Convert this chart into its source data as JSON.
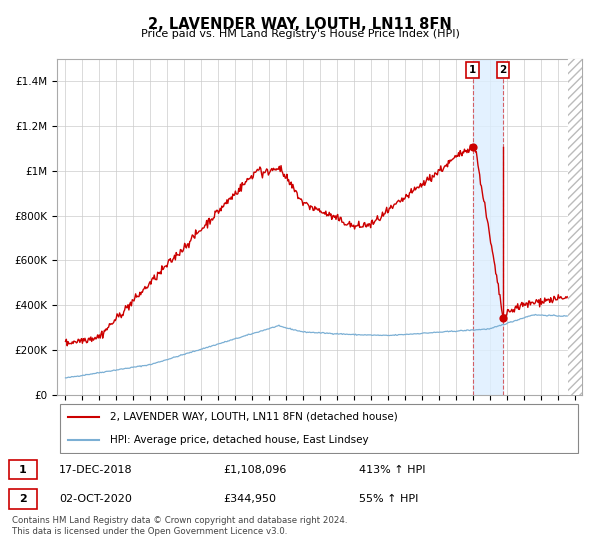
{
  "title": "2, LAVENDER WAY, LOUTH, LN11 8FN",
  "subtitle": "Price paid vs. HM Land Registry's House Price Index (HPI)",
  "legend_line1": "2, LAVENDER WAY, LOUTH, LN11 8FN (detached house)",
  "legend_line2": "HPI: Average price, detached house, East Lindsey",
  "annotation1_date": "17-DEC-2018",
  "annotation1_price": "£1,108,096",
  "annotation1_hpi": "413% ↑ HPI",
  "annotation2_date": "02-OCT-2020",
  "annotation2_price": "£344,950",
  "annotation2_hpi": "55% ↑ HPI",
  "footer": "Contains HM Land Registry data © Crown copyright and database right 2024.\nThis data is licensed under the Open Government Licence v3.0.",
  "hpi_color": "#7bafd4",
  "price_color": "#cc0000",
  "marker_color": "#cc0000",
  "shade_color": "#ddeeff",
  "hatch_color": "#bbbbbb",
  "grid_color": "#cccccc",
  "ylim": [
    0,
    1500000
  ],
  "yticks": [
    0,
    200000,
    400000,
    600000,
    800000,
    1000000,
    1200000,
    1400000
  ],
  "ytick_labels": [
    "£0",
    "£200K",
    "£400K",
    "£600K",
    "£800K",
    "£1M",
    "£1.2M",
    "£1.4M"
  ],
  "marker1_x": 2018.96,
  "marker1_y": 1108096,
  "marker2_x": 2020.75,
  "marker2_y": 344950,
  "shade_x1": 2018.96,
  "shade_x2": 2020.75,
  "xlim_left": 1994.5,
  "xlim_right": 2025.4
}
